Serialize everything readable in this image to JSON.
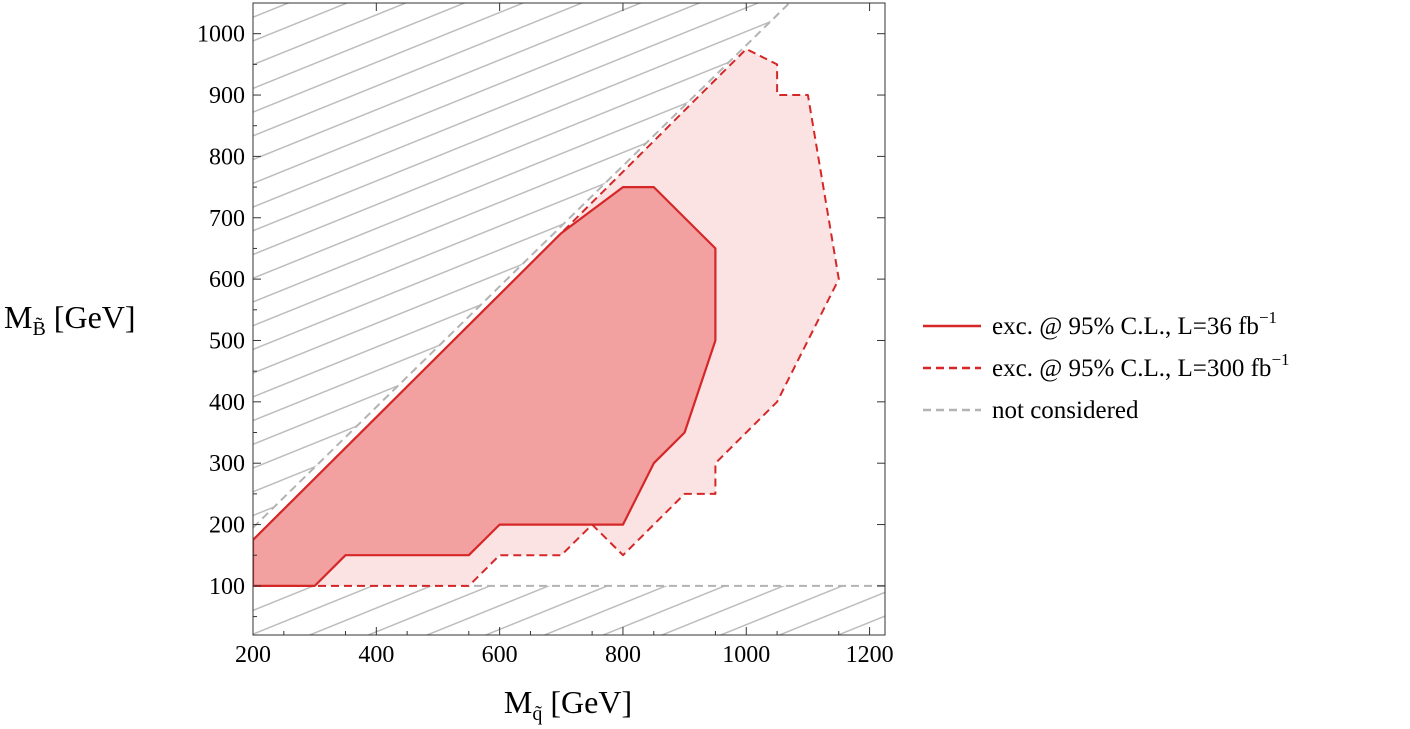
{
  "chart_data": {
    "type": "area",
    "xlabel": {
      "main": "M",
      "sub": "q̃",
      "unit": "[GeV]"
    },
    "ylabel": {
      "main": "M",
      "sub": "B̃",
      "unit": "[GeV]"
    },
    "xlim": [
      200,
      1225
    ],
    "ylim": [
      20,
      1050
    ],
    "x_ticks": [
      200,
      400,
      600,
      800,
      1000,
      1200
    ],
    "y_ticks": [
      100,
      200,
      300,
      400,
      500,
      600,
      700,
      800,
      900,
      1000
    ],
    "grid": false,
    "legend_position": "right",
    "series": [
      {
        "name": "exc. @ 95% C.L., L=300 fb",
        "name_sup": "−1",
        "style": "dashed",
        "color": "#d62728",
        "fill": "#fbe3e3",
        "points": [
          [
            200,
            100
          ],
          [
            550,
            100
          ],
          [
            600,
            150
          ],
          [
            700,
            150
          ],
          [
            750,
            200
          ],
          [
            800,
            150
          ],
          [
            900,
            250
          ],
          [
            950,
            250
          ],
          [
            950,
            300
          ],
          [
            1050,
            400
          ],
          [
            1150,
            600
          ],
          [
            1100,
            900
          ],
          [
            1050,
            900
          ],
          [
            1050,
            950
          ],
          [
            1000,
            975
          ],
          [
            200,
            175
          ]
        ]
      },
      {
        "name": "exc. @ 95% C.L., L=36 fb",
        "name_sup": "−1",
        "style": "solid",
        "color": "#d62728",
        "fill": "#f2a0a0",
        "points": [
          [
            200,
            100
          ],
          [
            300,
            100
          ],
          [
            350,
            150
          ],
          [
            550,
            150
          ],
          [
            600,
            200
          ],
          [
            800,
            200
          ],
          [
            850,
            300
          ],
          [
            900,
            350
          ],
          [
            950,
            500
          ],
          [
            950,
            650
          ],
          [
            850,
            750
          ],
          [
            800,
            750
          ],
          [
            700,
            675
          ],
          [
            200,
            175
          ]
        ]
      },
      {
        "name": "not considered",
        "style": "dashed",
        "color": "#b3b3b3",
        "regions": [
          "diagonal",
          "bottom"
        ]
      }
    ],
    "boundaries": {
      "diagonal": [
        [
          200,
          195
        ],
        [
          1070,
          1050
        ]
      ],
      "bottom_y": 100
    },
    "legend_order": [
      1,
      0,
      2
    ]
  }
}
